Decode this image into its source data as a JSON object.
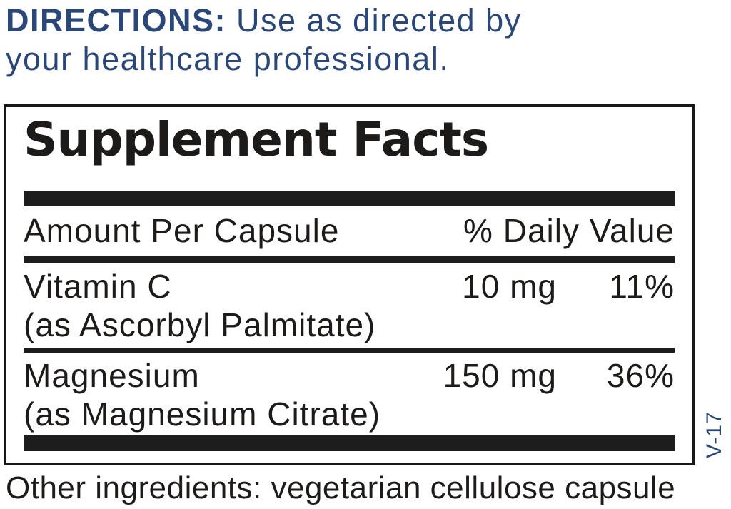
{
  "colors": {
    "navy_accent": "#2b4777",
    "ink": "#1d1b19",
    "bar_black": "#1d1d1d"
  },
  "directions": {
    "heading": "DIRECTIONS:",
    "text_after_heading": " Use as directed by",
    "line2": "your healthcare professional."
  },
  "supplement_facts": {
    "title": "Supplement Facts",
    "header": {
      "amount_column": "Amount Per Capsule",
      "daily_value_column": "% Daily Value"
    },
    "rows": [
      {
        "name": "Vitamin C",
        "source": "(as Ascorbyl Palmitate)",
        "amount": "10 mg",
        "daily_value": "11%"
      },
      {
        "name": "Magnesium",
        "source": "(as Magnesium Citrate)",
        "amount": "150 mg",
        "daily_value": "36%"
      }
    ]
  },
  "side_code": "V-17",
  "other_ingredients": "Other ingredients: vegetarian cellulose capsule"
}
